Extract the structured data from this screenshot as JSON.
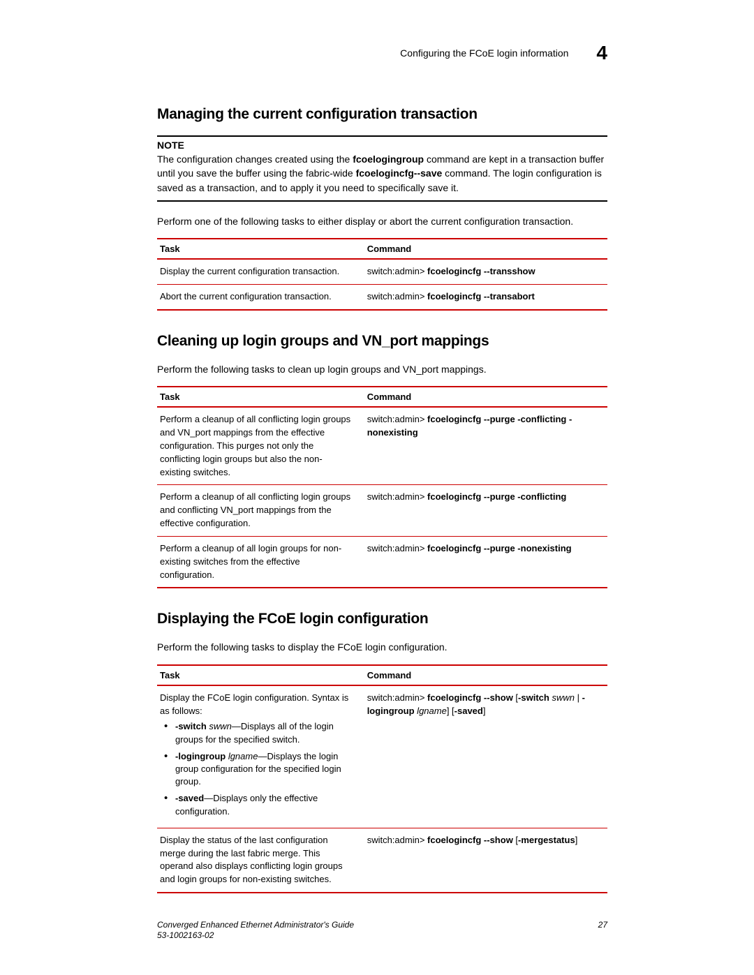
{
  "header": {
    "title": "Configuring the FCoE login information",
    "chapter": "4"
  },
  "section1": {
    "heading": "Managing the current configuration transaction",
    "note_label": "NOTE",
    "note_text_1": "The configuration changes created using the ",
    "note_bold_1": "fcoelogingroup",
    "note_text_2": " command are kept in a transaction buffer until you save the buffer using the fabric-wide ",
    "note_bold_2": "fcoelogincfg--save",
    "note_text_3": " command. The login configuration is saved as a transaction, and to apply it you need to specifically save it.",
    "intro": "Perform one of the following tasks to either display or abort the current configuration transaction.",
    "col_task": "Task",
    "col_cmd": "Command",
    "rows": [
      {
        "task": "Display the current configuration transaction.",
        "prompt": "switch:admin> ",
        "cmd": "fcoelogincfg --transshow"
      },
      {
        "task": "Abort the current configuration transaction.",
        "prompt": "switch:admin> ",
        "cmd": "fcoelogincfg --transabort"
      }
    ]
  },
  "section2": {
    "heading": "Cleaning up login groups and VN_port mappings",
    "intro": "Perform the following tasks to clean up login groups and VN_port mappings.",
    "col_task": "Task",
    "col_cmd": "Command",
    "rows": [
      {
        "task": "Perform a cleanup of all conflicting login groups and VN_port mappings from the effective configuration. This purges not only the conflicting login groups but also the non-existing switches.",
        "prompt": "switch:admin> ",
        "cmd": "fcoelogincfg --purge -conflicting -nonexisting"
      },
      {
        "task": "Perform a cleanup of all conflicting login groups and conflicting VN_port mappings from the effective configuration.",
        "prompt": "switch:admin> ",
        "cmd": "fcoelogincfg --purge -conflicting"
      },
      {
        "task": "Perform a cleanup of all login groups for non-existing switches from the effective configuration.",
        "prompt": "switch:admin> ",
        "cmd": "fcoelogincfg --purge -nonexisting"
      }
    ]
  },
  "section3": {
    "heading": "Displaying the FCoE login configuration",
    "intro": "Perform the following tasks to display the FCoE login configuration.",
    "col_task": "Task",
    "col_cmd": "Command",
    "row1": {
      "task_intro": "Display the FCoE login configuration. Syntax is as follows:",
      "bullets": [
        {
          "b": "-switch",
          "i": " swwn",
          "t": "—Displays all of the login groups for the specified switch."
        },
        {
          "b": "-logingroup",
          "i": " lgname",
          "t": "—Displays the login group configuration for the specified login group."
        },
        {
          "b": "-saved",
          "i": "",
          "t": "—Displays only the effective configuration."
        }
      ],
      "prompt": "switch:admin> ",
      "cmd_b1": "fcoelogincfg --show",
      "cmd_t1": " [",
      "cmd_b2": "-switch",
      "cmd_i1": " swwn",
      "cmd_t2": " | ",
      "cmd_b3": "-logingroup",
      "cmd_i2": " lgname",
      "cmd_t3": "] [",
      "cmd_b4": "-saved",
      "cmd_t4": "]"
    },
    "row2": {
      "task": "Display the status of the last configuration merge during the last fabric merge. This operand also displays conflicting login groups and login groups for non-existing switches.",
      "prompt": "switch:admin> ",
      "cmd_b1": "fcoelogincfg --show",
      "cmd_t1": " [",
      "cmd_b2": "-mergestatus",
      "cmd_t2": "]"
    }
  },
  "footer": {
    "title": "Converged Enhanced Ethernet Administrator's Guide",
    "doc": "53-1002163-02",
    "page": "27"
  }
}
